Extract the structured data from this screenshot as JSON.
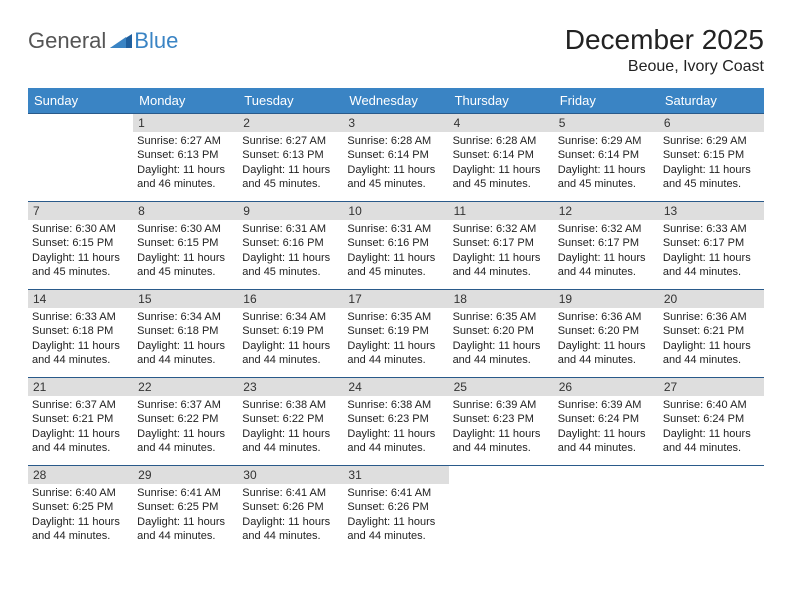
{
  "logo": {
    "word1": "General",
    "word2": "Blue"
  },
  "title": "December 2025",
  "location": "Beoue, Ivory Coast",
  "colors": {
    "header_bg": "#3a84c4",
    "header_text": "#ffffff",
    "daynum_bg": "#dedede",
    "daynum_border": "#2a5a8a",
    "body_text": "#222222",
    "logo_gray": "#555555",
    "logo_blue": "#3a84c4",
    "background": "#ffffff"
  },
  "typography": {
    "title_fontsize": 28,
    "location_fontsize": 16,
    "th_fontsize": 13,
    "cell_fontsize": 11,
    "daynum_fontsize": 12
  },
  "weekdays": [
    "Sunday",
    "Monday",
    "Tuesday",
    "Wednesday",
    "Thursday",
    "Friday",
    "Saturday"
  ],
  "weeks": [
    [
      null,
      {
        "n": "1",
        "sunrise": "6:27 AM",
        "sunset": "6:13 PM",
        "daylight": "11 hours and 46 minutes."
      },
      {
        "n": "2",
        "sunrise": "6:27 AM",
        "sunset": "6:13 PM",
        "daylight": "11 hours and 45 minutes."
      },
      {
        "n": "3",
        "sunrise": "6:28 AM",
        "sunset": "6:14 PM",
        "daylight": "11 hours and 45 minutes."
      },
      {
        "n": "4",
        "sunrise": "6:28 AM",
        "sunset": "6:14 PM",
        "daylight": "11 hours and 45 minutes."
      },
      {
        "n": "5",
        "sunrise": "6:29 AM",
        "sunset": "6:14 PM",
        "daylight": "11 hours and 45 minutes."
      },
      {
        "n": "6",
        "sunrise": "6:29 AM",
        "sunset": "6:15 PM",
        "daylight": "11 hours and 45 minutes."
      }
    ],
    [
      {
        "n": "7",
        "sunrise": "6:30 AM",
        "sunset": "6:15 PM",
        "daylight": "11 hours and 45 minutes."
      },
      {
        "n": "8",
        "sunrise": "6:30 AM",
        "sunset": "6:15 PM",
        "daylight": "11 hours and 45 minutes."
      },
      {
        "n": "9",
        "sunrise": "6:31 AM",
        "sunset": "6:16 PM",
        "daylight": "11 hours and 45 minutes."
      },
      {
        "n": "10",
        "sunrise": "6:31 AM",
        "sunset": "6:16 PM",
        "daylight": "11 hours and 45 minutes."
      },
      {
        "n": "11",
        "sunrise": "6:32 AM",
        "sunset": "6:17 PM",
        "daylight": "11 hours and 44 minutes."
      },
      {
        "n": "12",
        "sunrise": "6:32 AM",
        "sunset": "6:17 PM",
        "daylight": "11 hours and 44 minutes."
      },
      {
        "n": "13",
        "sunrise": "6:33 AM",
        "sunset": "6:17 PM",
        "daylight": "11 hours and 44 minutes."
      }
    ],
    [
      {
        "n": "14",
        "sunrise": "6:33 AM",
        "sunset": "6:18 PM",
        "daylight": "11 hours and 44 minutes."
      },
      {
        "n": "15",
        "sunrise": "6:34 AM",
        "sunset": "6:18 PM",
        "daylight": "11 hours and 44 minutes."
      },
      {
        "n": "16",
        "sunrise": "6:34 AM",
        "sunset": "6:19 PM",
        "daylight": "11 hours and 44 minutes."
      },
      {
        "n": "17",
        "sunrise": "6:35 AM",
        "sunset": "6:19 PM",
        "daylight": "11 hours and 44 minutes."
      },
      {
        "n": "18",
        "sunrise": "6:35 AM",
        "sunset": "6:20 PM",
        "daylight": "11 hours and 44 minutes."
      },
      {
        "n": "19",
        "sunrise": "6:36 AM",
        "sunset": "6:20 PM",
        "daylight": "11 hours and 44 minutes."
      },
      {
        "n": "20",
        "sunrise": "6:36 AM",
        "sunset": "6:21 PM",
        "daylight": "11 hours and 44 minutes."
      }
    ],
    [
      {
        "n": "21",
        "sunrise": "6:37 AM",
        "sunset": "6:21 PM",
        "daylight": "11 hours and 44 minutes."
      },
      {
        "n": "22",
        "sunrise": "6:37 AM",
        "sunset": "6:22 PM",
        "daylight": "11 hours and 44 minutes."
      },
      {
        "n": "23",
        "sunrise": "6:38 AM",
        "sunset": "6:22 PM",
        "daylight": "11 hours and 44 minutes."
      },
      {
        "n": "24",
        "sunrise": "6:38 AM",
        "sunset": "6:23 PM",
        "daylight": "11 hours and 44 minutes."
      },
      {
        "n": "25",
        "sunrise": "6:39 AM",
        "sunset": "6:23 PM",
        "daylight": "11 hours and 44 minutes."
      },
      {
        "n": "26",
        "sunrise": "6:39 AM",
        "sunset": "6:24 PM",
        "daylight": "11 hours and 44 minutes."
      },
      {
        "n": "27",
        "sunrise": "6:40 AM",
        "sunset": "6:24 PM",
        "daylight": "11 hours and 44 minutes."
      }
    ],
    [
      {
        "n": "28",
        "sunrise": "6:40 AM",
        "sunset": "6:25 PM",
        "daylight": "11 hours and 44 minutes."
      },
      {
        "n": "29",
        "sunrise": "6:41 AM",
        "sunset": "6:25 PM",
        "daylight": "11 hours and 44 minutes."
      },
      {
        "n": "30",
        "sunrise": "6:41 AM",
        "sunset": "6:26 PM",
        "daylight": "11 hours and 44 minutes."
      },
      {
        "n": "31",
        "sunrise": "6:41 AM",
        "sunset": "6:26 PM",
        "daylight": "11 hours and 44 minutes."
      },
      null,
      null,
      null
    ]
  ],
  "labels": {
    "sunrise": "Sunrise:",
    "sunset": "Sunset:",
    "daylight": "Daylight:"
  }
}
